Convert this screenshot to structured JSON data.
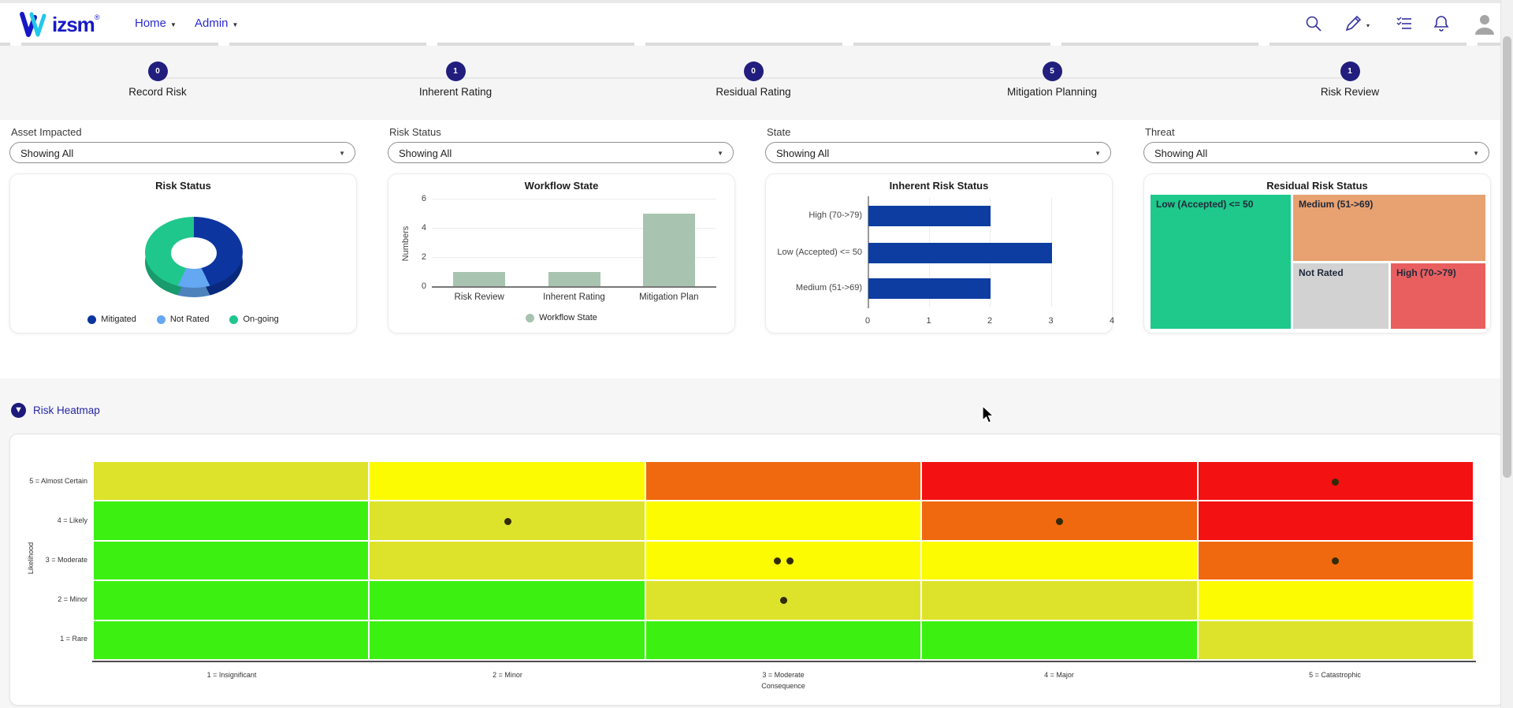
{
  "navbar": {
    "logo_text": "izsm",
    "logo_registered": "®",
    "links": [
      {
        "label": "Home"
      },
      {
        "label": "Admin"
      }
    ],
    "icons": [
      "search-icon",
      "edit-icon",
      "task-list-icon",
      "notifications-icon",
      "profile-avatar"
    ]
  },
  "steps": [
    {
      "label": "Record Risk",
      "count": "0"
    },
    {
      "label": "Inherent Rating",
      "count": "1"
    },
    {
      "label": "Residual Rating",
      "count": "0"
    },
    {
      "label": "Mitigation Planning",
      "count": "5"
    },
    {
      "label": "Risk Review",
      "count": "1"
    }
  ],
  "filters": [
    {
      "label": "Asset Impacted",
      "value": "Showing All"
    },
    {
      "label": "Risk Status",
      "value": "Showing All"
    },
    {
      "label": "State",
      "value": "Showing All"
    },
    {
      "label": "Threat",
      "value": "Showing All"
    }
  ],
  "charts": {
    "risk_status": {
      "type": "donut",
      "title": "Risk Status",
      "segments": [
        {
          "label": "Mitigated",
          "value": 3,
          "color": "#0c35a0"
        },
        {
          "label": "Not Rated",
          "value": 1,
          "color": "#64a7f2"
        },
        {
          "label": "On-going",
          "value": 3,
          "color": "#1fc78c"
        }
      ]
    },
    "workflow_state": {
      "type": "bar",
      "title": "Workflow State",
      "ylabel": "Numbers",
      "categories": [
        "Risk Review",
        "Inherent Rating",
        "Mitigation Plan"
      ],
      "values": [
        1,
        1,
        5
      ],
      "yticks": [
        0,
        2,
        4,
        6
      ],
      "ylim": [
        0,
        6
      ],
      "bar_color": "#a8c3af",
      "legend": "Workflow State"
    },
    "inherent_risk": {
      "type": "horizontal-bar",
      "title": "Inherent Risk Status",
      "categories": [
        "High (70->79)",
        "Low (Accepted) <= 50",
        "Medium (51->69)"
      ],
      "values": [
        2,
        3,
        2
      ],
      "xticks": [
        0,
        1,
        2,
        3,
        4
      ],
      "xlim": [
        0,
        4
      ],
      "bar_color": "#0d3da1"
    },
    "residual_risk": {
      "type": "treemap",
      "title": "Residual Risk Status",
      "tiles": [
        {
          "label": "Low (Accepted) <= 50",
          "color": "#1ec98b"
        },
        {
          "label": "Medium (51->69)",
          "color": "#e8a170"
        },
        {
          "label": "Not Rated",
          "color": "#d2d2d2"
        },
        {
          "label": "High (70->79)",
          "color": "#e95f60"
        }
      ]
    }
  },
  "heatmap": {
    "title": "Risk Heatmap",
    "ylabel": "Likelihood",
    "xlabel": "Consequence",
    "row_labels": [
      "5 = Almost Certain",
      "4 = Likely",
      "3 = Moderate",
      "2 = Minor",
      "1 = Rare"
    ],
    "col_labels": [
      "1 = Insignificant",
      "2 = Minor",
      "3 = Moderate",
      "4 = Major",
      "5 = Catastrophic"
    ],
    "palette": {
      "green": "#3cf112",
      "yellowgreen": "#dde32a",
      "yellow": "#fdfb02",
      "orange": "#f0690f",
      "red": "#f31111"
    },
    "grid": [
      [
        "yellowgreen",
        "yellow",
        "orange",
        "red",
        "red"
      ],
      [
        "green",
        "yellowgreen",
        "yellow",
        "orange",
        "red"
      ],
      [
        "green",
        "yellowgreen",
        "yellow",
        "yellow",
        "orange"
      ],
      [
        "green",
        "green",
        "yellowgreen",
        "yellowgreen",
        "yellow"
      ],
      [
        "green",
        "green",
        "green",
        "green",
        "yellowgreen"
      ]
    ],
    "dots": [
      {
        "row": 0,
        "col": 4,
        "count": 1
      },
      {
        "row": 1,
        "col": 1,
        "count": 1
      },
      {
        "row": 1,
        "col": 3,
        "count": 1
      },
      {
        "row": 2,
        "col": 2,
        "count": 2
      },
      {
        "row": 2,
        "col": 4,
        "count": 1
      },
      {
        "row": 3,
        "col": 2,
        "count": 1
      }
    ],
    "dot_color": "#332b06"
  }
}
